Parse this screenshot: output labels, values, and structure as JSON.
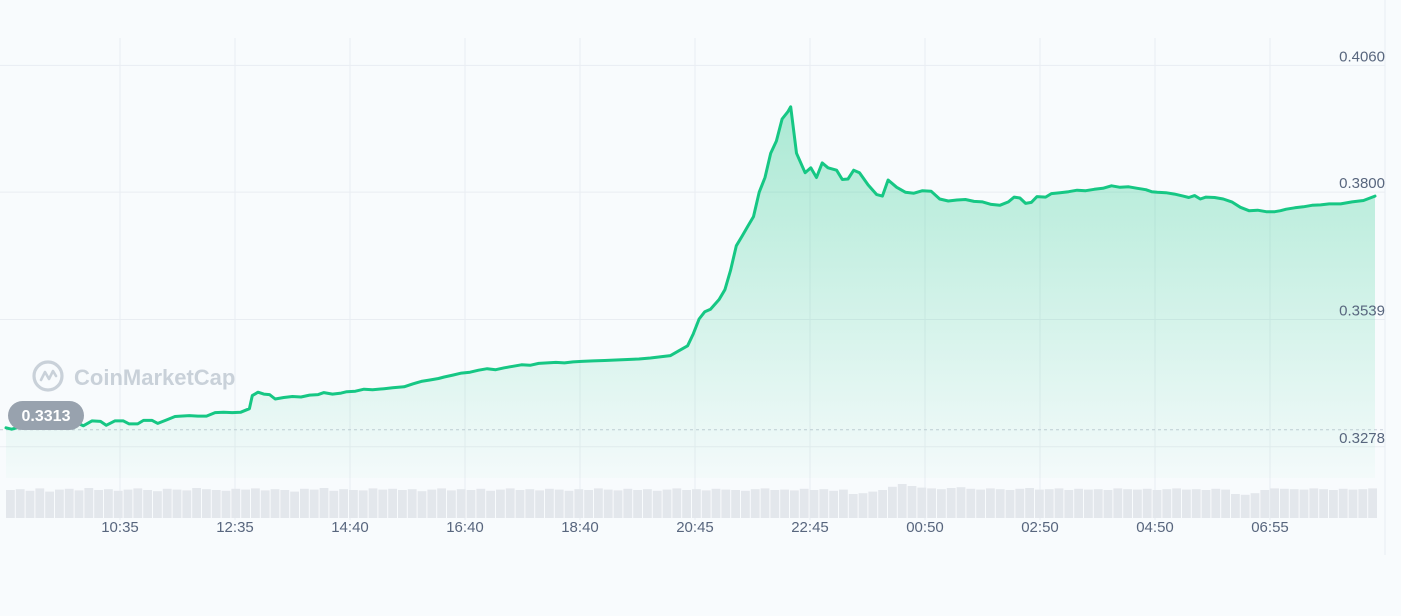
{
  "watermark": {
    "text": "CoinMarketCap",
    "icon": "coinmarketcap-logo-icon"
  },
  "start_badge": {
    "value": "0.3313"
  },
  "colors": {
    "line": "#16c784",
    "area_top": "#16c784",
    "badge_bg": "#98a2ae",
    "volume": "#e3e7ec",
    "grid": "#e9edf2",
    "text": "#58667e"
  },
  "chart_data": {
    "type": "area",
    "title": "",
    "xlabel": "",
    "ylabel": "",
    "x_ticks": [
      "10:35",
      "12:35",
      "14:40",
      "16:40",
      "18:40",
      "20:45",
      "22:45",
      "00:50",
      "02:50",
      "04:50",
      "06:55"
    ],
    "y_ticks": [
      "0.4060",
      "0.3800",
      "0.3539",
      "0.3278"
    ],
    "ylim": [
      0.3214,
      0.4112
    ],
    "xlim": [
      0,
      23.9
    ],
    "reference_value": 0.3313,
    "grid": true,
    "series": [
      {
        "values": [
          [
            0.0,
            0.3317
          ],
          [
            0.1,
            0.3314
          ],
          [
            0.25,
            0.3319
          ],
          [
            0.4,
            0.3321
          ],
          [
            0.55,
            0.333
          ],
          [
            0.7,
            0.3325
          ],
          [
            0.85,
            0.3331
          ],
          [
            1.0,
            0.3327
          ],
          [
            1.1,
            0.3333
          ],
          [
            1.2,
            0.3329
          ],
          [
            1.35,
            0.3321
          ],
          [
            1.5,
            0.3331
          ],
          [
            1.65,
            0.333
          ],
          [
            1.75,
            0.3322
          ],
          [
            1.9,
            0.3331
          ],
          [
            2.05,
            0.3331
          ],
          [
            2.15,
            0.3325
          ],
          [
            2.3,
            0.3325
          ],
          [
            2.4,
            0.3332
          ],
          [
            2.55,
            0.3332
          ],
          [
            2.65,
            0.3326
          ],
          [
            2.8,
            0.3333
          ],
          [
            2.95,
            0.334
          ],
          [
            3.05,
            0.3341
          ],
          [
            3.2,
            0.3342
          ],
          [
            3.35,
            0.3341
          ],
          [
            3.5,
            0.3341
          ],
          [
            3.65,
            0.3348
          ],
          [
            3.8,
            0.3349
          ],
          [
            3.95,
            0.3348
          ],
          [
            4.1,
            0.3349
          ],
          [
            4.25,
            0.3356
          ],
          [
            4.3,
            0.3383
          ],
          [
            4.4,
            0.339
          ],
          [
            4.5,
            0.3386
          ],
          [
            4.6,
            0.3385
          ],
          [
            4.7,
            0.3376
          ],
          [
            4.85,
            0.3379
          ],
          [
            5.0,
            0.3381
          ],
          [
            5.15,
            0.338
          ],
          [
            5.3,
            0.3384
          ],
          [
            5.45,
            0.3385
          ],
          [
            5.55,
            0.3389
          ],
          [
            5.7,
            0.3386
          ],
          [
            5.85,
            0.3388
          ],
          [
            5.95,
            0.3391
          ],
          [
            6.1,
            0.3392
          ],
          [
            6.25,
            0.3396
          ],
          [
            6.4,
            0.3395
          ],
          [
            6.6,
            0.3397
          ],
          [
            6.75,
            0.3399
          ],
          [
            6.95,
            0.3401
          ],
          [
            7.1,
            0.3407
          ],
          [
            7.25,
            0.3412
          ],
          [
            7.4,
            0.3415
          ],
          [
            7.55,
            0.3418
          ],
          [
            7.65,
            0.3421
          ],
          [
            7.8,
            0.3425
          ],
          [
            7.95,
            0.3429
          ],
          [
            8.1,
            0.3431
          ],
          [
            8.25,
            0.3435
          ],
          [
            8.4,
            0.3438
          ],
          [
            8.55,
            0.3436
          ],
          [
            8.7,
            0.344
          ],
          [
            8.85,
            0.3443
          ],
          [
            9.0,
            0.3446
          ],
          [
            9.15,
            0.3445
          ],
          [
            9.3,
            0.3449
          ],
          [
            9.45,
            0.345
          ],
          [
            9.6,
            0.3451
          ],
          [
            9.75,
            0.345
          ],
          [
            9.9,
            0.3452
          ],
          [
            10.05,
            0.3453
          ],
          [
            10.25,
            0.3454
          ],
          [
            10.45,
            0.3455
          ],
          [
            10.65,
            0.3456
          ],
          [
            10.85,
            0.3457
          ],
          [
            11.05,
            0.3458
          ],
          [
            11.25,
            0.346
          ],
          [
            11.45,
            0.3463
          ],
          [
            11.6,
            0.3465
          ],
          [
            11.75,
            0.3475
          ],
          [
            11.9,
            0.3485
          ],
          [
            12.0,
            0.351
          ],
          [
            12.1,
            0.354
          ],
          [
            12.2,
            0.3555
          ],
          [
            12.3,
            0.356
          ],
          [
            12.45,
            0.358
          ],
          [
            12.55,
            0.36
          ],
          [
            12.65,
            0.364
          ],
          [
            12.75,
            0.369
          ],
          [
            12.85,
            0.371
          ],
          [
            12.95,
            0.373
          ],
          [
            13.05,
            0.375
          ],
          [
            13.15,
            0.38
          ],
          [
            13.25,
            0.383
          ],
          [
            13.35,
            0.388
          ],
          [
            13.45,
            0.3905
          ],
          [
            13.55,
            0.395
          ],
          [
            13.65,
            0.3965
          ],
          [
            13.7,
            0.3975
          ],
          [
            13.8,
            0.388
          ],
          [
            13.95,
            0.384
          ],
          [
            14.05,
            0.385
          ],
          [
            14.15,
            0.383
          ],
          [
            14.25,
            0.386
          ],
          [
            14.35,
            0.385
          ],
          [
            14.5,
            0.3845
          ],
          [
            14.6,
            0.3826
          ],
          [
            14.7,
            0.3827
          ],
          [
            14.8,
            0.3845
          ],
          [
            14.9,
            0.384
          ],
          [
            15.05,
            0.3815
          ],
          [
            15.2,
            0.3795
          ],
          [
            15.3,
            0.3792
          ],
          [
            15.4,
            0.3825
          ],
          [
            15.55,
            0.381
          ],
          [
            15.7,
            0.38
          ],
          [
            15.85,
            0.3798
          ],
          [
            16.0,
            0.3803
          ],
          [
            16.15,
            0.3802
          ],
          [
            16.3,
            0.3786
          ],
          [
            16.45,
            0.3782
          ],
          [
            16.6,
            0.3784
          ],
          [
            16.75,
            0.3785
          ],
          [
            16.9,
            0.3781
          ],
          [
            17.05,
            0.378
          ],
          [
            17.2,
            0.3775
          ],
          [
            17.35,
            0.3773
          ],
          [
            17.5,
            0.378
          ],
          [
            17.6,
            0.379
          ],
          [
            17.7,
            0.3788
          ],
          [
            17.8,
            0.3777
          ],
          [
            17.9,
            0.3779
          ],
          [
            18.0,
            0.3791
          ],
          [
            18.15,
            0.379
          ],
          [
            18.25,
            0.3797
          ],
          [
            18.4,
            0.3799
          ],
          [
            18.55,
            0.3801
          ],
          [
            18.7,
            0.3804
          ],
          [
            18.85,
            0.3803
          ],
          [
            19.0,
            0.3806
          ],
          [
            19.15,
            0.3808
          ],
          [
            19.3,
            0.3813
          ],
          [
            19.45,
            0.381
          ],
          [
            19.6,
            0.3811
          ],
          [
            19.75,
            0.3808
          ],
          [
            19.9,
            0.3805
          ],
          [
            20.0,
            0.3801
          ],
          [
            20.1,
            0.38
          ],
          [
            20.25,
            0.3799
          ],
          [
            20.4,
            0.3796
          ],
          [
            20.55,
            0.3792
          ],
          [
            20.65,
            0.3789
          ],
          [
            20.75,
            0.3793
          ],
          [
            20.85,
            0.3786
          ],
          [
            20.95,
            0.379
          ],
          [
            21.1,
            0.3789
          ],
          [
            21.25,
            0.3786
          ],
          [
            21.4,
            0.378
          ],
          [
            21.55,
            0.3769
          ],
          [
            21.7,
            0.3762
          ],
          [
            21.85,
            0.3763
          ],
          [
            22.0,
            0.376
          ],
          [
            22.15,
            0.376
          ],
          [
            22.25,
            0.3762
          ],
          [
            22.35,
            0.3765
          ],
          [
            22.5,
            0.3768
          ],
          [
            22.65,
            0.377
          ],
          [
            22.8,
            0.3773
          ],
          [
            22.95,
            0.3774
          ],
          [
            23.1,
            0.3776
          ],
          [
            23.3,
            0.3776
          ],
          [
            23.5,
            0.378
          ],
          [
            23.7,
            0.3783
          ],
          [
            23.9,
            0.3792
          ]
        ]
      }
    ],
    "volume_note": "relative volume bars along the bottom",
    "volume": [
      0.7,
      0.72,
      0.68,
      0.74,
      0.66,
      0.71,
      0.73,
      0.69,
      0.75,
      0.7,
      0.72,
      0.68,
      0.71,
      0.74,
      0.7,
      0.67,
      0.73,
      0.71,
      0.69,
      0.75,
      0.72,
      0.7,
      0.68,
      0.73,
      0.71,
      0.74,
      0.69,
      0.72,
      0.7,
      0.66,
      0.73,
      0.71,
      0.75,
      0.68,
      0.72,
      0.7,
      0.69,
      0.74,
      0.71,
      0.73,
      0.7,
      0.72,
      0.67,
      0.71,
      0.74,
      0.69,
      0.72,
      0.7,
      0.73,
      0.68,
      0.71,
      0.74,
      0.7,
      0.72,
      0.69,
      0.73,
      0.71,
      0.68,
      0.72,
      0.7,
      0.74,
      0.71,
      0.69,
      0.73,
      0.7,
      0.72,
      0.68,
      0.71,
      0.74,
      0.7,
      0.72,
      0.69,
      0.73,
      0.71,
      0.7,
      0.68,
      0.72,
      0.74,
      0.7,
      0.71,
      0.69,
      0.73,
      0.7,
      0.72,
      0.68,
      0.71,
      0.6,
      0.62,
      0.66,
      0.7,
      0.78,
      0.85,
      0.8,
      0.76,
      0.74,
      0.72,
      0.75,
      0.77,
      0.73,
      0.71,
      0.74,
      0.72,
      0.7,
      0.73,
      0.75,
      0.71,
      0.72,
      0.74,
      0.7,
      0.73,
      0.71,
      0.72,
      0.7,
      0.74,
      0.72,
      0.71,
      0.73,
      0.7,
      0.72,
      0.74,
      0.71,
      0.72,
      0.7,
      0.73,
      0.71,
      0.6,
      0.58,
      0.62,
      0.7,
      0.74,
      0.73,
      0.72,
      0.71,
      0.74,
      0.72,
      0.7,
      0.73,
      0.71,
      0.72,
      0.74
    ]
  }
}
